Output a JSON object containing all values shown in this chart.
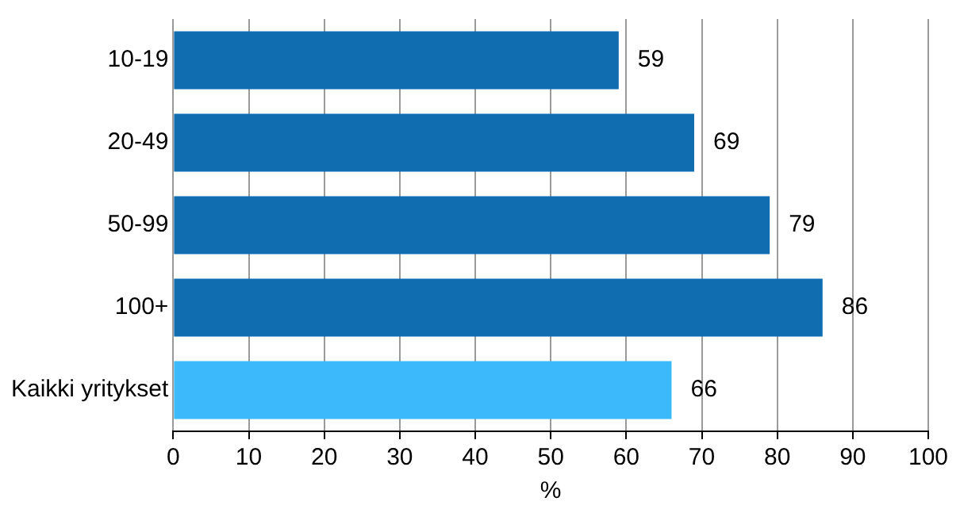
{
  "chart_data": {
    "type": "bar",
    "orientation": "horizontal",
    "xlabel": "%",
    "categories": [
      "10-19",
      "20-49",
      "50-99",
      "100+",
      "Kaikki yritykset"
    ],
    "values": [
      59,
      69,
      79,
      86,
      66
    ],
    "colors": [
      "#0f6db0",
      "#0f6db0",
      "#0f6db0",
      "#0f6db0",
      "#3cb9fa"
    ],
    "xlim": [
      0,
      100
    ],
    "xticks": [
      0,
      10,
      20,
      30,
      40,
      50,
      60,
      70,
      80,
      90,
      100
    ],
    "grid": "x",
    "data_labels": true,
    "legend": false
  }
}
